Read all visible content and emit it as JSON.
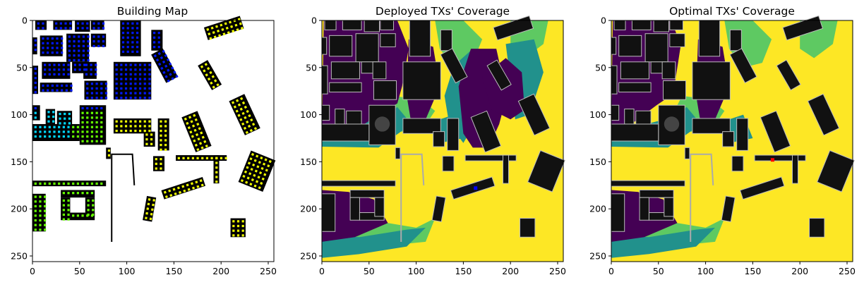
{
  "figure": {
    "titles": [
      "Building Map",
      "Deployed TXs' Coverage",
      "Optimal TXs' Coverage"
    ]
  },
  "chart_data": [
    {
      "type": "heatmap",
      "title": "Building Map",
      "xlabel": "",
      "ylabel": "",
      "xlim": [
        0,
        256
      ],
      "ylim": [
        256,
        0
      ],
      "xticks": [
        0,
        50,
        100,
        150,
        200,
        250
      ],
      "yticks": [
        0,
        50,
        100,
        150,
        200,
        250
      ],
      "background_color": "#ffffff",
      "building_color": "#000000",
      "marker_colors": [
        "#0018ff",
        "#00d8ff",
        "#66ff00",
        "#f0ff00"
      ]
    },
    {
      "type": "heatmap",
      "title": "Deployed TXs' Coverage",
      "xlabel": "",
      "ylabel": "",
      "xlim": [
        0,
        256
      ],
      "ylim": [
        256,
        0
      ],
      "xticks": [
        0,
        50,
        100,
        150,
        200,
        250
      ],
      "yticks": [
        0,
        50,
        100,
        150,
        200,
        250
      ],
      "colormap": [
        "#440154",
        "#21918c",
        "#5ec962",
        "#fde725"
      ],
      "tx_markers": [
        {
          "x": 163,
          "y": 178,
          "color": "#0000ff"
        }
      ]
    },
    {
      "type": "heatmap",
      "title": "Optimal TXs' Coverage",
      "xlabel": "",
      "ylabel": "",
      "xlim": [
        0,
        256
      ],
      "ylim": [
        256,
        0
      ],
      "xticks": [
        0,
        50,
        100,
        150,
        200,
        250
      ],
      "yticks": [
        0,
        50,
        100,
        150,
        200,
        250
      ],
      "colormap": [
        "#440154",
        "#21918c",
        "#5ec962",
        "#fde725"
      ],
      "tx_markers": [
        {
          "x": 171,
          "y": 148,
          "color": "#ff0000"
        }
      ]
    }
  ],
  "buildings": [
    {
      "x": 3,
      "y": 0,
      "w": 12,
      "h": 10
    },
    {
      "x": 22,
      "y": 0,
      "w": 20,
      "h": 10
    },
    {
      "x": 45,
      "y": 0,
      "w": 16,
      "h": 12
    },
    {
      "x": 62,
      "y": 0,
      "w": 14,
      "h": 10
    },
    {
      "x": 93,
      "y": 0,
      "w": 22,
      "h": 38
    },
    {
      "x": 126,
      "y": 10,
      "w": 12,
      "h": 22
    },
    {
      "x": 0,
      "y": 18,
      "w": 5,
      "h": 18
    },
    {
      "x": 8,
      "y": 16,
      "w": 24,
      "h": 22
    },
    {
      "x": 36,
      "y": 14,
      "w": 24,
      "h": 30
    },
    {
      "x": 62,
      "y": 14,
      "w": 16,
      "h": 14
    },
    {
      "x": 0,
      "y": 48,
      "w": 6,
      "h": 30
    },
    {
      "x": 10,
      "y": 44,
      "w": 30,
      "h": 18
    },
    {
      "x": 42,
      "y": 44,
      "w": 16,
      "h": 12
    },
    {
      "x": 54,
      "y": 44,
      "w": 14,
      "h": 18
    },
    {
      "x": 86,
      "y": 44,
      "w": 40,
      "h": 40
    },
    {
      "x": 8,
      "y": 66,
      "w": 34,
      "h": 10
    },
    {
      "x": 55,
      "y": 64,
      "w": 24,
      "h": 20
    },
    {
      "x": 0,
      "y": 90,
      "w": 8,
      "h": 16
    },
    {
      "x": 14,
      "y": 94,
      "w": 10,
      "h": 16
    },
    {
      "x": 26,
      "y": 96,
      "w": 16,
      "h": 16
    },
    {
      "x": 50,
      "y": 90,
      "w": 28,
      "h": 42
    },
    {
      "x": 0,
      "y": 110,
      "w": 50,
      "h": 18
    },
    {
      "x": 86,
      "y": 104,
      "w": 40,
      "h": 16
    },
    {
      "x": 118,
      "y": 118,
      "w": 12,
      "h": 16
    },
    {
      "x": 133,
      "y": 104,
      "w": 12,
      "h": 34
    },
    {
      "x": 78,
      "y": 135,
      "w": 5,
      "h": 12
    },
    {
      "x": 128,
      "y": 144,
      "w": 12,
      "h": 16
    },
    {
      "x": 152,
      "y": 143,
      "w": 54,
      "h": 6
    },
    {
      "x": 192,
      "y": 143,
      "w": 6,
      "h": 30
    },
    {
      "x": 0,
      "y": 170,
      "w": 78,
      "h": 6
    },
    {
      "x": 0,
      "y": 184,
      "w": 14,
      "h": 40
    },
    {
      "x": 30,
      "y": 180,
      "w": 36,
      "h": 8
    },
    {
      "x": 30,
      "y": 188,
      "w": 10,
      "h": 24
    },
    {
      "x": 40,
      "y": 204,
      "w": 26,
      "h": 8
    },
    {
      "x": 56,
      "y": 188,
      "w": 10,
      "h": 20
    },
    {
      "x": 210,
      "y": 210,
      "w": 16,
      "h": 20
    }
  ],
  "rotated_buildings": [
    {
      "cx": 140,
      "cy": 48,
      "w": 14,
      "h": 34,
      "a": -28
    },
    {
      "cx": 188,
      "cy": 58,
      "w": 12,
      "h": 30,
      "a": -30
    },
    {
      "cx": 203,
      "cy": 8,
      "w": 40,
      "h": 14,
      "a": -18
    },
    {
      "cx": 225,
      "cy": 100,
      "w": 18,
      "h": 40,
      "a": -25
    },
    {
      "cx": 174,
      "cy": 118,
      "w": 18,
      "h": 40,
      "a": -22
    },
    {
      "cx": 238,
      "cy": 160,
      "w": 28,
      "h": 36,
      "a": 22
    },
    {
      "cx": 160,
      "cy": 178,
      "w": 46,
      "h": 10,
      "a": -18
    },
    {
      "cx": 124,
      "cy": 200,
      "w": 10,
      "h": 26,
      "a": 10
    }
  ]
}
